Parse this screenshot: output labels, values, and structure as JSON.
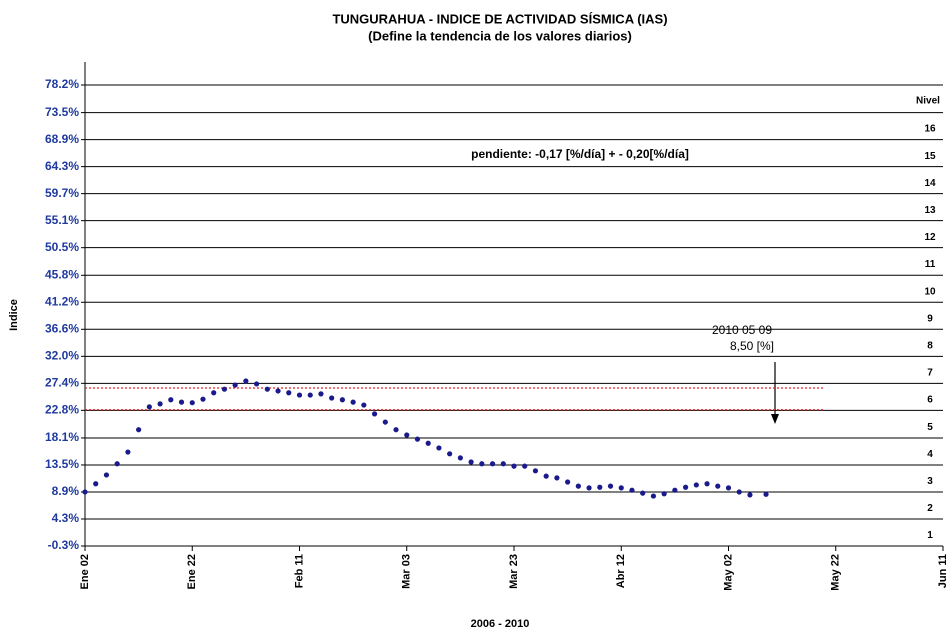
{
  "chart_data": {
    "type": "scatter",
    "title": "TUNGURAHUA - INDICE DE ACTIVIDAD SÍSMICA (IAS)",
    "subtitle": "(Define la tendencia de los valores diarios)",
    "x_label": "2006 - 2010",
    "y_label": "Indice",
    "annotations": [
      "pendiente:   -0,17 [%/día] + - 0,20[%/día]",
      "2010 05 09",
      "8,50 [%]"
    ],
    "level_title": "Nivel",
    "levels": [
      "1",
      "2",
      "3",
      "4",
      "5",
      "6",
      "7",
      "8",
      "9",
      "10",
      "11",
      "12",
      "13",
      "14",
      "15",
      "16"
    ],
    "x": [
      0,
      2,
      4,
      6,
      8,
      10,
      12,
      14,
      16,
      18,
      20,
      22,
      24,
      26,
      28,
      30,
      32,
      34,
      36,
      38,
      40,
      42,
      44,
      46,
      48,
      50,
      52,
      54,
      56,
      58,
      60,
      62,
      64,
      66,
      68,
      70,
      72,
      74,
      76,
      78,
      80,
      82,
      84,
      86,
      88,
      90,
      92,
      94,
      96,
      98,
      100,
      102,
      104,
      106,
      108,
      110,
      112,
      114,
      116,
      118,
      120,
      122,
      124,
      127
    ],
    "series": [
      {
        "name": "IAS",
        "color": "#1a1a8c",
        "values": [
          8.9,
          10.3,
          11.8,
          13.7,
          15.7,
          19.5,
          23.4,
          23.9,
          24.6,
          24.2,
          24.1,
          24.7,
          25.8,
          26.4,
          27.1,
          27.8,
          27.3,
          26.4,
          26.1,
          25.8,
          25.4,
          25.4,
          25.6,
          24.9,
          24.6,
          24.2,
          23.7,
          22.2,
          20.8,
          19.5,
          18.6,
          17.9,
          17.2,
          16.4,
          15.4,
          14.7,
          14.0,
          13.7,
          13.7,
          13.7,
          13.3,
          13.3,
          12.5,
          11.6,
          11.3,
          10.6,
          9.9,
          9.6,
          9.7,
          9.9,
          9.6,
          9.2,
          8.7,
          8.2,
          8.6,
          9.2,
          9.7,
          10.1,
          10.3,
          9.9,
          9.6,
          8.9,
          8.4,
          8.5
        ]
      }
    ],
    "thresholds": [
      26.6,
      22.9
    ],
    "threshold_color": "#e02020",
    "xlim": [
      0,
      160
    ],
    "xticks": [
      {
        "value": 0,
        "label": "Ene 02"
      },
      {
        "value": 20,
        "label": "Ene 22"
      },
      {
        "value": 40,
        "label": "Feb 11"
      },
      {
        "value": 60,
        "label": "Mar 03"
      },
      {
        "value": 80,
        "label": "Mar 23"
      },
      {
        "value": 100,
        "label": "Abr 12"
      },
      {
        "value": 120,
        "label": "May 02"
      },
      {
        "value": 140,
        "label": "May 22"
      },
      {
        "value": 160,
        "label": "Jun 11"
      }
    ],
    "ylim": [
      -0.3,
      78.2
    ],
    "yticks": [
      {
        "value": -0.3,
        "label": "-0.3%"
      },
      {
        "value": 4.3,
        "label": "4.3%"
      },
      {
        "value": 8.9,
        "label": "8.9%"
      },
      {
        "value": 13.5,
        "label": "13.5%"
      },
      {
        "value": 18.1,
        "label": "18.1%"
      },
      {
        "value": 22.8,
        "label": "22.8%"
      },
      {
        "value": 27.4,
        "label": "27.4%"
      },
      {
        "value": 32.0,
        "label": "32.0%"
      },
      {
        "value": 36.6,
        "label": "36.6%"
      },
      {
        "value": 41.2,
        "label": "41.2%"
      },
      {
        "value": 45.8,
        "label": "45.8%"
      },
      {
        "value": 50.5,
        "label": "50.5%"
      },
      {
        "value": 55.1,
        "label": "55.1%"
      },
      {
        "value": 59.7,
        "label": "59.7%"
      },
      {
        "value": 64.3,
        "label": "64.3%"
      },
      {
        "value": 68.9,
        "label": "68.9%"
      },
      {
        "value": 73.5,
        "label": "73.5%"
      },
      {
        "value": 78.2,
        "label": "78.2%"
      }
    ],
    "grid": true
  }
}
